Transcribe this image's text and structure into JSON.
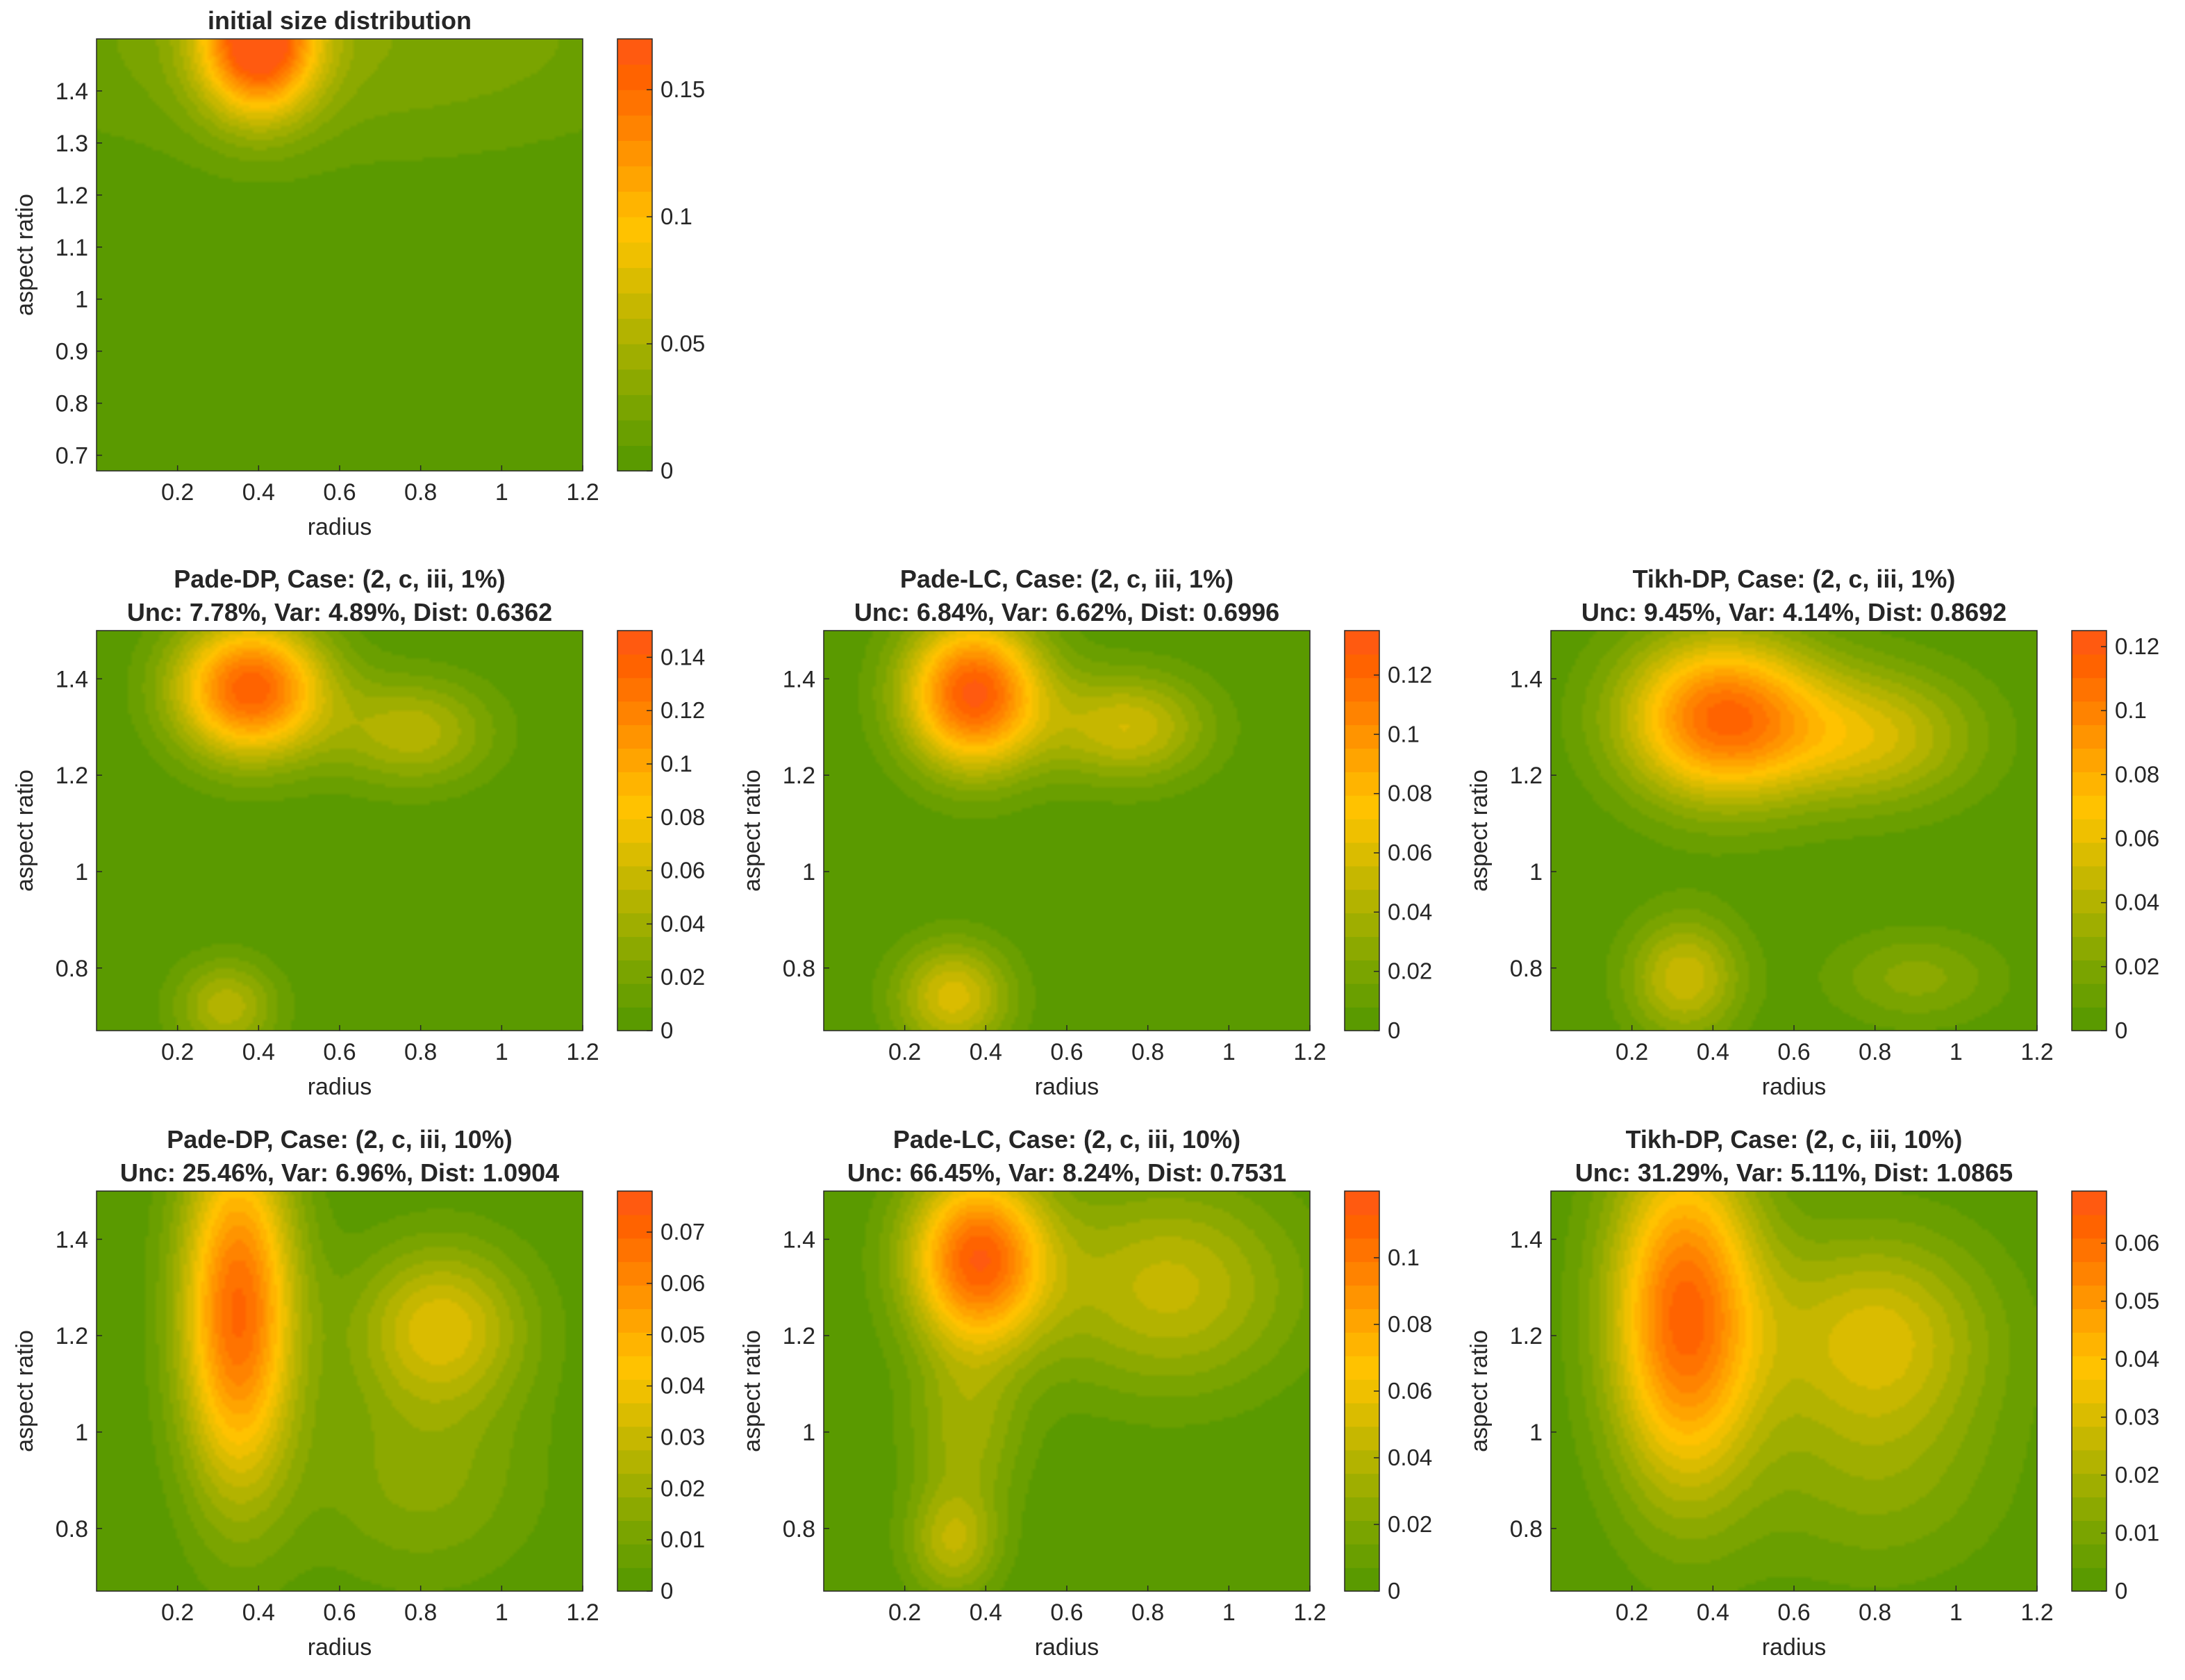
{
  "colormap": [
    "#5a9a00",
    "#6a9f00",
    "#7aa400",
    "#8ca900",
    "#9fae00",
    "#b3b300",
    "#c6b700",
    "#dabc00",
    "#efc000",
    "#ffc200",
    "#ffb400",
    "#ffa400",
    "#ff9400",
    "#ff8300",
    "#ff7300",
    "#ff6300",
    "#ff5a10"
  ],
  "chart_data": [
    {
      "id": "initial",
      "type": "contour",
      "title_lines": [
        "initial size distribution"
      ],
      "xlabel": "radius",
      "ylabel": "aspect ratio",
      "xlim": [
        0,
        1.2
      ],
      "ylim": [
        0.67,
        1.5
      ],
      "xticks": [
        0.2,
        0.4,
        0.6,
        0.8,
        1,
        1.2
      ],
      "xtick_labels": [
        "0.2",
        "0.4",
        "0.6",
        "0.8",
        "1",
        "1.2"
      ],
      "yticks": [
        0.7,
        0.8,
        0.9,
        1,
        1.1,
        1.2,
        1.3,
        1.4
      ],
      "ytick_labels": [
        "0.7",
        "0.8",
        "0.9",
        "1",
        "1.1",
        "1.2",
        "1.3",
        "1.4"
      ],
      "clim": [
        0,
        0.17
      ],
      "cbticks": [
        0,
        0.05,
        0.1,
        0.15
      ],
      "cbtick_labels": [
        "0",
        "0.05",
        "0.1",
        "0.15"
      ],
      "peaks": [
        {
          "x": 0.4,
          "y": 1.5,
          "sx": 0.1,
          "sy": 0.1,
          "a": 0.17
        },
        {
          "x": 0.6,
          "y": 1.5,
          "sx": 0.6,
          "sy": 0.16,
          "a": 0.03
        }
      ]
    },
    {
      "id": "pade-dp-1",
      "type": "contour",
      "title_lines": [
        "Pade-DP, Case: (2, c, iii, 1%)",
        "Unc: 7.78%, Var: 4.89%, Dist: 0.6362"
      ],
      "xlabel": "radius",
      "ylabel": "aspect ratio",
      "xlim": [
        0,
        1.2
      ],
      "ylim": [
        0.67,
        1.5
      ],
      "xticks": [
        0.2,
        0.4,
        0.6,
        0.8,
        1,
        1.2
      ],
      "xtick_labels": [
        "0.2",
        "0.4",
        "0.6",
        "0.8",
        "1",
        "1.2"
      ],
      "yticks": [
        0.8,
        1,
        1.2,
        1.4
      ],
      "ytick_labels": [
        "0.8",
        "1",
        "1.2",
        "1.4"
      ],
      "clim": [
        0,
        0.15
      ],
      "cbticks": [
        0,
        0.02,
        0.04,
        0.06,
        0.08,
        0.1,
        0.12,
        0.14
      ],
      "cbtick_labels": [
        "0",
        "0.02",
        "0.04",
        "0.06",
        "0.08",
        "0.1",
        "0.12",
        "0.14"
      ],
      "peaks": [
        {
          "x": 0.38,
          "y": 1.38,
          "sx": 0.13,
          "sy": 0.1,
          "a": 0.14
        },
        {
          "x": 0.78,
          "y": 1.29,
          "sx": 0.14,
          "sy": 0.08,
          "a": 0.05
        },
        {
          "x": 0.32,
          "y": 0.72,
          "sx": 0.09,
          "sy": 0.07,
          "a": 0.05
        }
      ]
    },
    {
      "id": "pade-lc-1",
      "type": "contour",
      "title_lines": [
        "Pade-LC, Case: (2, c, iii, 1%)",
        "Unc: 6.84%, Var: 6.62%, Dist: 0.6996"
      ],
      "xlabel": "radius",
      "ylabel": "aspect ratio",
      "xlim": [
        0,
        1.2
      ],
      "ylim": [
        0.67,
        1.5
      ],
      "xticks": [
        0.2,
        0.4,
        0.6,
        0.8,
        1,
        1.2
      ],
      "xtick_labels": [
        "0.2",
        "0.4",
        "0.6",
        "0.8",
        "1",
        "1.2"
      ],
      "yticks": [
        0.8,
        1,
        1.2,
        1.4
      ],
      "ytick_labels": [
        "0.8",
        "1",
        "1.2",
        "1.4"
      ],
      "clim": [
        0,
        0.135
      ],
      "cbticks": [
        0,
        0.02,
        0.04,
        0.06,
        0.08,
        0.1,
        0.12
      ],
      "cbtick_labels": [
        "0",
        "0.02",
        "0.04",
        "0.06",
        "0.08",
        "0.1",
        "0.12"
      ],
      "peaks": [
        {
          "x": 0.37,
          "y": 1.37,
          "sx": 0.12,
          "sy": 0.11,
          "a": 0.13
        },
        {
          "x": 0.75,
          "y": 1.3,
          "sx": 0.14,
          "sy": 0.08,
          "a": 0.055
        },
        {
          "x": 0.32,
          "y": 0.74,
          "sx": 0.1,
          "sy": 0.08,
          "a": 0.06
        }
      ]
    },
    {
      "id": "tikh-dp-1",
      "type": "contour",
      "title_lines": [
        "Tikh-DP, Case: (2, c, iii, 1%)",
        "Unc: 9.45%, Var: 4.14%, Dist: 0.8692"
      ],
      "xlabel": "radius",
      "ylabel": "aspect ratio",
      "xlim": [
        0,
        1.2
      ],
      "ylim": [
        0.67,
        1.5
      ],
      "xticks": [
        0.2,
        0.4,
        0.6,
        0.8,
        1,
        1.2
      ],
      "xtick_labels": [
        "0.2",
        "0.4",
        "0.6",
        "0.8",
        "1",
        "1.2"
      ],
      "yticks": [
        0.8,
        1,
        1.2,
        1.4
      ],
      "ytick_labels": [
        "0.8",
        "1",
        "1.2",
        "1.4"
      ],
      "clim": [
        0,
        0.125
      ],
      "cbticks": [
        0,
        0.02,
        0.04,
        0.06,
        0.08,
        0.1,
        0.12
      ],
      "cbtick_labels": [
        "0",
        "0.02",
        "0.04",
        "0.06",
        "0.08",
        "0.1",
        "0.12"
      ],
      "peaks": [
        {
          "x": 0.42,
          "y": 1.32,
          "sx": 0.17,
          "sy": 0.12,
          "a": 0.11
        },
        {
          "x": 0.8,
          "y": 1.28,
          "sx": 0.18,
          "sy": 0.1,
          "a": 0.05
        },
        {
          "x": 0.33,
          "y": 0.78,
          "sx": 0.1,
          "sy": 0.09,
          "a": 0.05
        },
        {
          "x": 0.9,
          "y": 0.78,
          "sx": 0.15,
          "sy": 0.07,
          "a": 0.025
        }
      ]
    },
    {
      "id": "pade-dp-10",
      "type": "contour",
      "title_lines": [
        "Pade-DP, Case: (2, c, iii, 10%)",
        "Unc: 25.46%, Var: 6.96%, Dist: 1.0904"
      ],
      "xlabel": "radius",
      "ylabel": "aspect ratio",
      "xlim": [
        0,
        1.2
      ],
      "ylim": [
        0.67,
        1.5
      ],
      "xticks": [
        0.2,
        0.4,
        0.6,
        0.8,
        1,
        1.2
      ],
      "xtick_labels": [
        "0.2",
        "0.4",
        "0.6",
        "0.8",
        "1",
        "1.2"
      ],
      "yticks": [
        0.8,
        1,
        1.2,
        1.4
      ],
      "ytick_labels": [
        "0.8",
        "1",
        "1.2",
        "1.4"
      ],
      "clim": [
        0,
        0.078
      ],
      "cbticks": [
        0,
        0.01,
        0.02,
        0.03,
        0.04,
        0.05,
        0.06,
        0.07
      ],
      "cbtick_labels": [
        "0",
        "0.01",
        "0.02",
        "0.03",
        "0.04",
        "0.05",
        "0.06",
        "0.07"
      ],
      "peaks": [
        {
          "x": 0.35,
          "y": 1.25,
          "sx": 0.1,
          "sy": 0.26,
          "a": 0.07
        },
        {
          "x": 0.85,
          "y": 1.22,
          "sx": 0.15,
          "sy": 0.12,
          "a": 0.035
        },
        {
          "x": 0.8,
          "y": 0.9,
          "sx": 0.2,
          "sy": 0.15,
          "a": 0.015
        }
      ]
    },
    {
      "id": "pade-lc-10",
      "type": "contour",
      "title_lines": [
        "Pade-LC, Case: (2, c, iii, 10%)",
        "Unc: 66.45%, Var: 8.24%, Dist: 0.7531"
      ],
      "xlabel": "radius",
      "ylabel": "aspect ratio",
      "xlim": [
        0,
        1.2
      ],
      "ylim": [
        0.67,
        1.5
      ],
      "xticks": [
        0.2,
        0.4,
        0.6,
        0.8,
        1,
        1.2
      ],
      "xtick_labels": [
        "0.2",
        "0.4",
        "0.6",
        "0.8",
        "1",
        "1.2"
      ],
      "yticks": [
        0.8,
        1,
        1.2,
        1.4
      ],
      "ytick_labels": [
        "0.8",
        "1",
        "1.2",
        "1.4"
      ],
      "clim": [
        0,
        0.12
      ],
      "cbticks": [
        0,
        0.02,
        0.04,
        0.06,
        0.08,
        0.1
      ],
      "cbtick_labels": [
        "0",
        "0.02",
        "0.04",
        "0.06",
        "0.08",
        "0.1"
      ],
      "peaks": [
        {
          "x": 0.38,
          "y": 1.36,
          "sx": 0.12,
          "sy": 0.13,
          "a": 0.11
        },
        {
          "x": 0.85,
          "y": 1.3,
          "sx": 0.22,
          "sy": 0.15,
          "a": 0.045
        },
        {
          "x": 0.32,
          "y": 0.77,
          "sx": 0.08,
          "sy": 0.08,
          "a": 0.04
        },
        {
          "x": 0.35,
          "y": 1.0,
          "sx": 0.1,
          "sy": 0.12,
          "a": 0.03
        }
      ]
    },
    {
      "id": "tikh-dp-10",
      "type": "contour",
      "title_lines": [
        "Tikh-DP, Case: (2, c, iii, 10%)",
        "Unc: 31.29%, Var: 5.11%, Dist: 1.0865"
      ],
      "xlabel": "radius",
      "ylabel": "aspect ratio",
      "xlim": [
        0,
        1.2
      ],
      "ylim": [
        0.67,
        1.5
      ],
      "xticks": [
        0.2,
        0.4,
        0.6,
        0.8,
        1,
        1.2
      ],
      "xtick_labels": [
        "0.2",
        "0.4",
        "0.6",
        "0.8",
        "1",
        "1.2"
      ],
      "yticks": [
        0.8,
        1,
        1.2,
        1.4
      ],
      "ytick_labels": [
        "0.8",
        "1",
        "1.2",
        "1.4"
      ],
      "clim": [
        0,
        0.069
      ],
      "cbticks": [
        0,
        0.01,
        0.02,
        0.03,
        0.04,
        0.05,
        0.06
      ],
      "cbtick_labels": [
        "0",
        "0.01",
        "0.02",
        "0.03",
        "0.04",
        "0.05",
        "0.06"
      ],
      "peaks": [
        {
          "x": 0.33,
          "y": 1.24,
          "sx": 0.13,
          "sy": 0.25,
          "a": 0.062
        },
        {
          "x": 0.8,
          "y": 1.2,
          "sx": 0.2,
          "sy": 0.15,
          "a": 0.03
        },
        {
          "x": 0.8,
          "y": 0.9,
          "sx": 0.22,
          "sy": 0.15,
          "a": 0.012
        }
      ]
    }
  ]
}
